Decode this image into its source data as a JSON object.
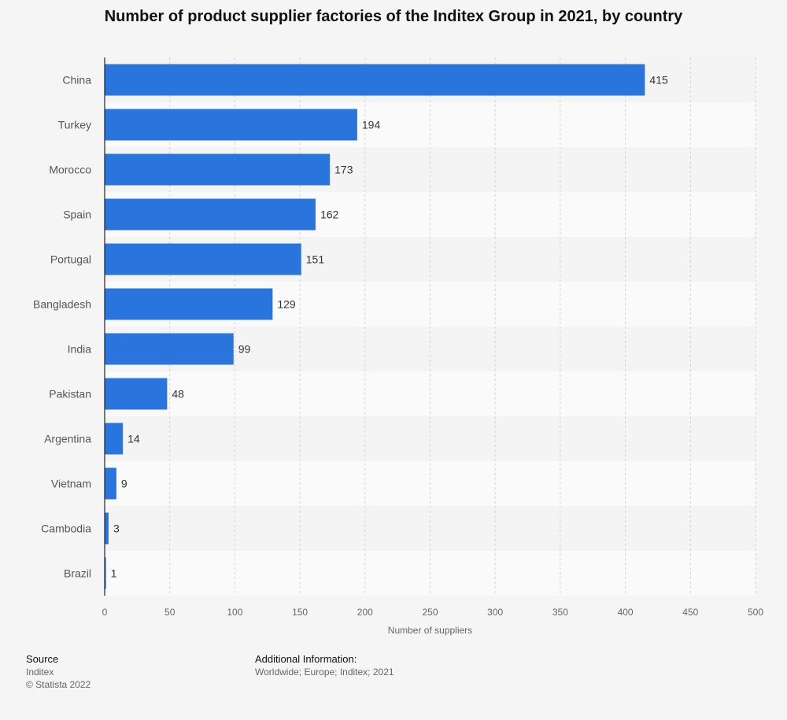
{
  "chart_data": {
    "type": "bar",
    "orientation": "horizontal",
    "title": "Number of product supplier factories of the Inditex Group in 2021, by country",
    "categories": [
      "China",
      "Turkey",
      "Morocco",
      "Spain",
      "Portugal",
      "Bangladesh",
      "India",
      "Pakistan",
      "Argentina",
      "Vietnam",
      "Cambodia",
      "Brazil"
    ],
    "values": [
      415,
      194,
      173,
      162,
      151,
      129,
      99,
      48,
      14,
      9,
      3,
      1
    ],
    "xlabel": "Number of suppliers",
    "ylabel": "",
    "xlim": [
      0,
      500
    ],
    "xticks": [
      "0",
      "50",
      "100",
      "150",
      "200",
      "250",
      "300",
      "350",
      "400",
      "450",
      "500"
    ],
    "grid": true,
    "bar_color": "#2a74de"
  },
  "footer": {
    "source_heading": "Source",
    "source_name": "Inditex",
    "copyright": "© Statista 2022",
    "additional_heading": "Additional Information:",
    "additional_text": "Worldwide; Europe; Inditex; 2021"
  }
}
